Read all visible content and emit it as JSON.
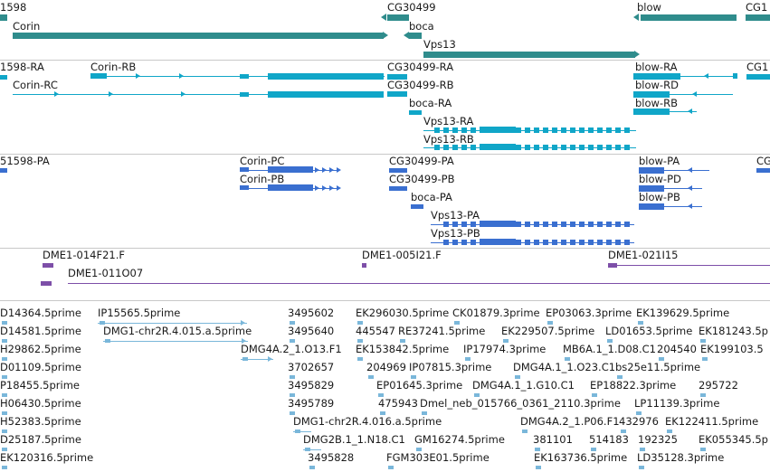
{
  "colors": {
    "gene": "#2f8c8c",
    "transcript": "#10a6c8",
    "protein": "#3a6fd0",
    "clone": "#7d4fa8",
    "est": "#7ab7da",
    "separator": "#c8c8c8"
  },
  "tracks": {
    "genes": [
      {
        "label": "1598"
      },
      {
        "label": "Corin"
      },
      {
        "label": "CG30499"
      },
      {
        "label": "boca"
      },
      {
        "label": "Vps13"
      },
      {
        "label": "blow"
      },
      {
        "label": "CG1"
      }
    ],
    "transcripts": [
      {
        "label": "1598-RA"
      },
      {
        "label": "Corin-RB"
      },
      {
        "label": "Corin-RC"
      },
      {
        "label": "CG30499-RA"
      },
      {
        "label": "CG30499-RB"
      },
      {
        "label": "boca-RA"
      },
      {
        "label": "Vps13-RA"
      },
      {
        "label": "Vps13-RB"
      },
      {
        "label": "blow-RA"
      },
      {
        "label": "blow-RD"
      },
      {
        "label": "blow-RB"
      },
      {
        "label": "CG1"
      }
    ],
    "proteins": [
      {
        "label": "51598-PA"
      },
      {
        "label": "Corin-PC"
      },
      {
        "label": "Corin-PB"
      },
      {
        "label": "CG30499-PA"
      },
      {
        "label": "CG30499-PB"
      },
      {
        "label": "boca-PA"
      },
      {
        "label": "Vps13-PA"
      },
      {
        "label": "Vps13-PB"
      },
      {
        "label": "blow-PA"
      },
      {
        "label": "blow-PD"
      },
      {
        "label": "blow-PB"
      },
      {
        "label": "CG"
      }
    ],
    "clones": [
      {
        "label": "DME1-014F21.F"
      },
      {
        "label": "DME1-011O07"
      },
      {
        "label": "DME1-005I21.F"
      },
      {
        "label": "DME1-021I15"
      }
    ],
    "ests": [
      {
        "label": "D14364.5prime"
      },
      {
        "label": "IP15565.5prime"
      },
      {
        "label": "3495602"
      },
      {
        "label": "EK296030.5prime"
      },
      {
        "label": "CK01879.3prime"
      },
      {
        "label": "EP03063.3prime"
      },
      {
        "label": "EK139629.5prime"
      },
      {
        "label": "D14581.5prime"
      },
      {
        "label": "DMG1-chr2R.4.015.a.5prime"
      },
      {
        "label": "3495640"
      },
      {
        "label": "445547"
      },
      {
        "label": "RE37241.5prime"
      },
      {
        "label": "EK229507.5prime"
      },
      {
        "label": "LD01653.5prime"
      },
      {
        "label": "EK181243.5p"
      },
      {
        "label": "H29862.5prime"
      },
      {
        "label": "DMG4A.2_1.O13.F1"
      },
      {
        "label": "EK153842.5prime"
      },
      {
        "label": "IP17974.3prime"
      },
      {
        "label": "MB6A.1_1.D08.C1"
      },
      {
        "label": "204540"
      },
      {
        "label": "EK199103.5"
      },
      {
        "label": "D01109.5prime"
      },
      {
        "label": "3702657"
      },
      {
        "label": "204969"
      },
      {
        "label": "IP07815.3prime"
      },
      {
        "label": "DMG4A.1_1.O23.C1"
      },
      {
        "label": "bs25e11.5prime"
      },
      {
        "label": "P18455.5prime"
      },
      {
        "label": "3495829"
      },
      {
        "label": "EP01645.3prime"
      },
      {
        "label": "DMG4A.1_1.G10.C1"
      },
      {
        "label": "EP18822.3prime"
      },
      {
        "label": "295722"
      },
      {
        "label": "H06430.5prime"
      },
      {
        "label": "3495789"
      },
      {
        "label": "475943"
      },
      {
        "label": "Dmel_neb_015766_0361_2110.3prime"
      },
      {
        "label": "LP11139.3prime"
      },
      {
        "label": "H52383.5prime"
      },
      {
        "label": "DMG1-chr2R.4.016.a.5prime"
      },
      {
        "label": "DMG4A.2_1.P06.F1"
      },
      {
        "label": "432976"
      },
      {
        "label": "EK122411.5prime"
      },
      {
        "label": "D25187.5prime"
      },
      {
        "label": "DMG2B.1_1.N18.C1"
      },
      {
        "label": "GM16274.5prime"
      },
      {
        "label": "381101"
      },
      {
        "label": "514183"
      },
      {
        "label": "192325"
      },
      {
        "label": "EK055345.5p"
      },
      {
        "label": "EK120316.5prime"
      },
      {
        "label": "3495828"
      },
      {
        "label": "FGM303E01.5prime"
      },
      {
        "label": "EK163736.5prime"
      },
      {
        "label": "LD35128.3prime"
      }
    ]
  }
}
